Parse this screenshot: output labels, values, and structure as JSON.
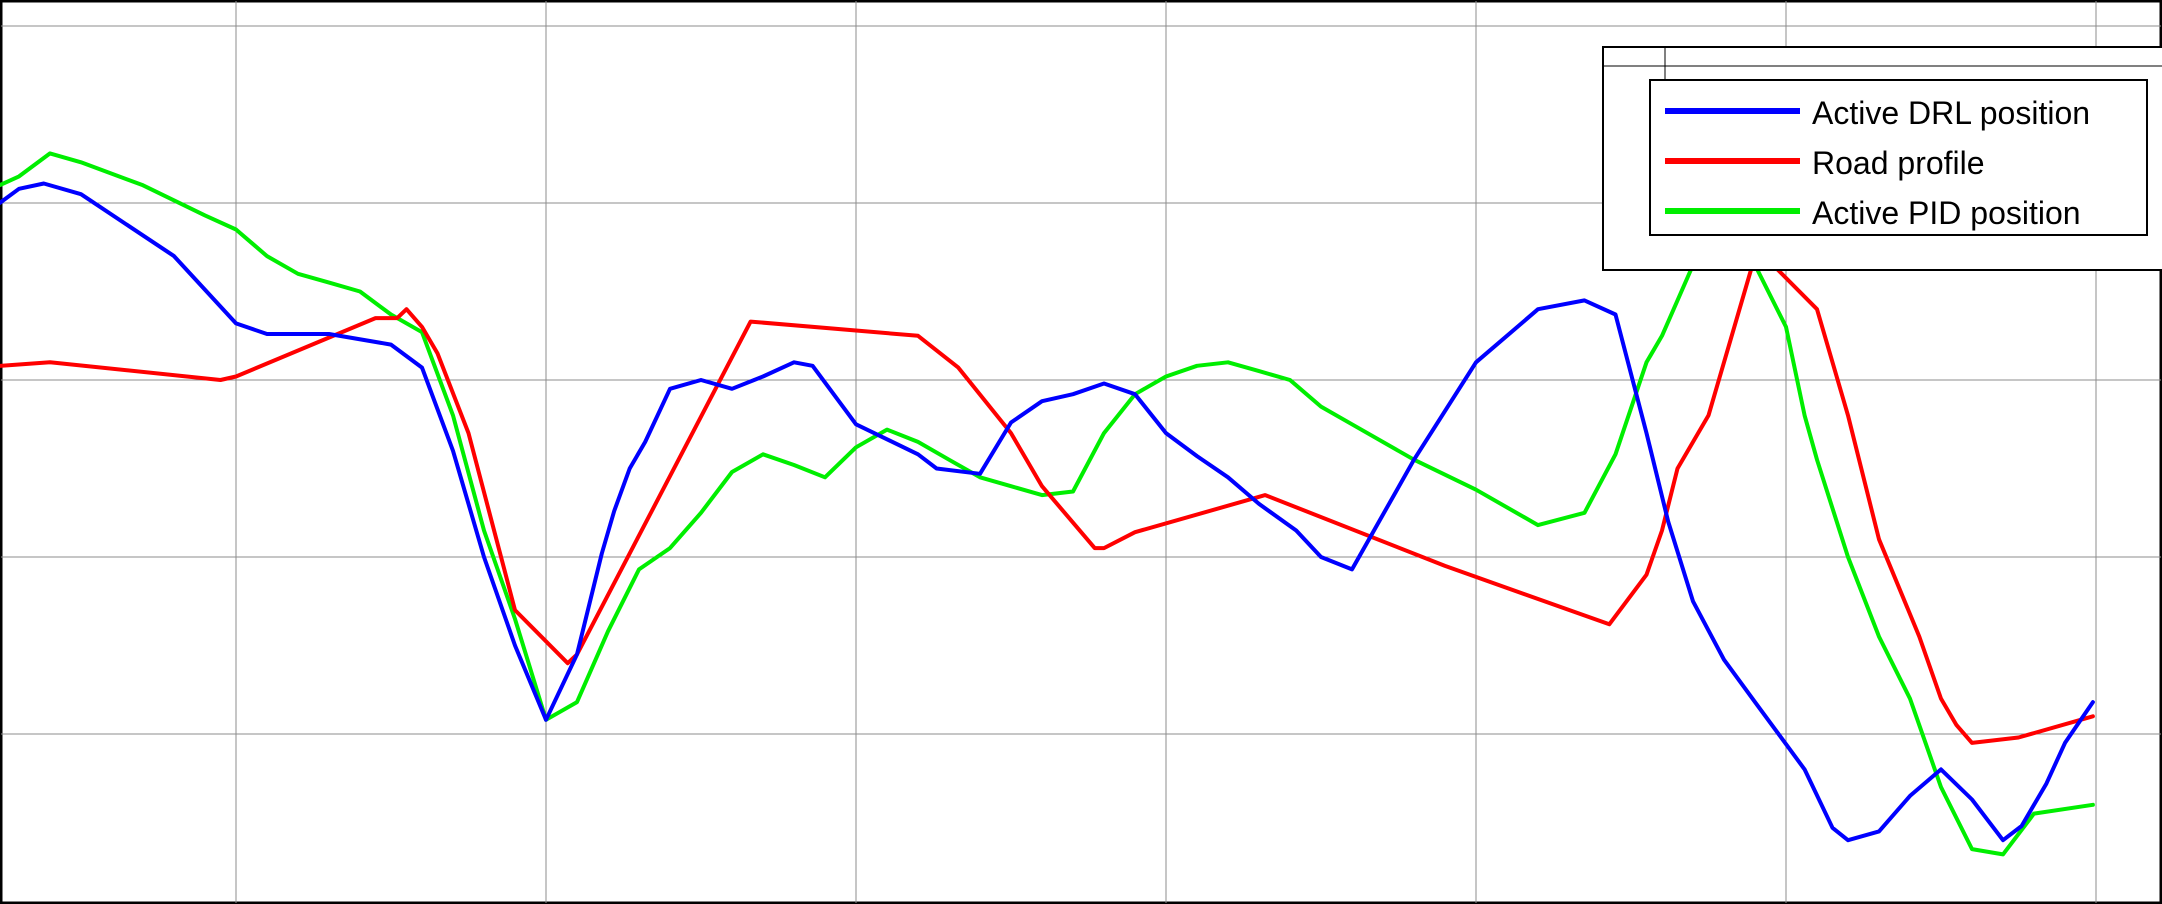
{
  "legend": {
    "entries": [
      {
        "label": "Active DRL position",
        "color": "#0000ff"
      },
      {
        "label": "Road profile",
        "color": "#ff0000"
      },
      {
        "label": "Active PID  position",
        "color": "#00ee00"
      }
    ]
  },
  "chart_data": {
    "type": "line",
    "title": "",
    "xlabel": "",
    "ylabel": "",
    "xlim": [
      0,
      7
    ],
    "ylim": [
      -5,
      0
    ],
    "grid": true,
    "legend_position": "top-right",
    "series": [
      {
        "name": "Active DRL position",
        "color": "#0000ff",
        "x": [
          0.0,
          0.1,
          0.16,
          0.3,
          0.38,
          0.5,
          0.8,
          1.0,
          1.1,
          1.3,
          1.5,
          1.6,
          1.7,
          1.8,
          1.9,
          2.0,
          2.1,
          2.18,
          2.22,
          2.27,
          2.32,
          2.4,
          2.5,
          2.6,
          2.7,
          2.8,
          2.86,
          3.0,
          3.2,
          3.26,
          3.4,
          3.5,
          3.6,
          3.7,
          3.8,
          3.9,
          4.0,
          4.1,
          4.2,
          4.3,
          4.42,
          4.5,
          4.6,
          4.8,
          5.0,
          5.2,
          5.35,
          5.45,
          5.55,
          5.62,
          5.7,
          5.8,
          5.9,
          6.06,
          6.15,
          6.2,
          6.3,
          6.4,
          6.5,
          6.6,
          6.7,
          6.76,
          6.84,
          6.9,
          6.99
        ],
        "values": [
          -0.92,
          -1.12,
          -1.1,
          -0.92,
          -0.89,
          -0.95,
          -1.3,
          -1.68,
          -1.74,
          -1.74,
          -1.8,
          -1.93,
          -2.4,
          -3.0,
          -3.5,
          -3.92,
          -3.55,
          -2.98,
          -2.74,
          -2.5,
          -2.35,
          -2.05,
          -2.0,
          -2.05,
          -1.98,
          -1.9,
          -1.92,
          -2.25,
          -2.42,
          -2.5,
          -2.53,
          -2.24,
          -2.12,
          -2.08,
          -2.02,
          -2.08,
          -2.3,
          -2.43,
          -2.55,
          -2.7,
          -2.85,
          -3.0,
          -3.07,
          -2.45,
          -1.9,
          -1.6,
          -1.55,
          -1.63,
          -2.3,
          -2.8,
          -3.25,
          -3.58,
          -3.82,
          -4.2,
          -4.53,
          -4.6,
          -4.55,
          -4.35,
          -4.2,
          -4.37,
          -4.6,
          -4.52,
          -4.28,
          -4.05,
          -3.82
        ],
        "values_precision_note": ""
      },
      {
        "name": "Road profile",
        "color": "#ff0000",
        "x": [
          0.0,
          0.4,
          0.95,
          1.0,
          1.45,
          1.52,
          1.55,
          1.6,
          1.65,
          1.75,
          1.9,
          2.07,
          2.1,
          2.66,
          3.2,
          3.33,
          3.5,
          3.6,
          3.77,
          3.8,
          3.9,
          4.32,
          4.9,
          5.43,
          5.55,
          5.6,
          5.65,
          5.75,
          5.9,
          5.93,
          6.1,
          6.2,
          6.3,
          6.43,
          6.5,
          6.55,
          6.6,
          6.75,
          6.99
        ],
        "values": [
          -1.95,
          -1.9,
          -2.0,
          -1.98,
          -1.65,
          -1.65,
          -1.6,
          -1.7,
          -1.85,
          -2.3,
          -3.3,
          -3.6,
          -3.55,
          -1.67,
          -1.75,
          -1.93,
          -2.3,
          -2.6,
          -2.95,
          -2.95,
          -2.86,
          -2.65,
          -3.05,
          -3.38,
          -3.1,
          -2.85,
          -2.5,
          -2.2,
          -1.3,
          -1.3,
          -1.6,
          -2.2,
          -2.9,
          -3.45,
          -3.8,
          -3.95,
          -4.05,
          -4.02,
          -3.9
        ]
      },
      {
        "name": "Active PID  position",
        "color": "#00ee00",
        "x": [
          0.0,
          0.1,
          0.2,
          0.3,
          0.4,
          0.5,
          0.7,
          0.9,
          1.0,
          1.1,
          1.2,
          1.3,
          1.4,
          1.5,
          1.6,
          1.7,
          1.8,
          1.9,
          2.0,
          2.1,
          2.2,
          2.3,
          2.4,
          2.5,
          2.6,
          2.7,
          2.8,
          2.9,
          3.0,
          3.1,
          3.2,
          3.3,
          3.4,
          3.5,
          3.6,
          3.7,
          3.8,
          3.9,
          4.0,
          4.1,
          4.2,
          4.3,
          4.4,
          4.5,
          4.6,
          4.8,
          5.0,
          5.2,
          5.35,
          5.45,
          5.55,
          5.6,
          5.7,
          5.8,
          5.9,
          6.0,
          6.06,
          6.1,
          6.2,
          6.3,
          6.4,
          6.5,
          6.6,
          6.7,
          6.8,
          6.99
        ],
        "values": [
          -0.92,
          -0.96,
          -0.93,
          -0.85,
          -0.72,
          -0.77,
          -0.9,
          -1.07,
          -1.15,
          -1.3,
          -1.4,
          -1.45,
          -1.5,
          -1.63,
          -1.73,
          -2.2,
          -2.85,
          -3.35,
          -3.92,
          -3.82,
          -3.42,
          -3.07,
          -2.95,
          -2.75,
          -2.52,
          -2.42,
          -2.48,
          -2.55,
          -2.38,
          -2.28,
          -2.35,
          -2.45,
          -2.55,
          -2.6,
          -2.65,
          -2.63,
          -2.3,
          -2.08,
          -1.98,
          -1.92,
          -1.9,
          -1.95,
          -2.0,
          -2.15,
          -2.25,
          -2.45,
          -2.62,
          -2.82,
          -2.75,
          -2.42,
          -1.9,
          -1.75,
          -1.35,
          -1.25,
          -1.35,
          -1.7,
          -2.2,
          -2.45,
          -3.0,
          -3.45,
          -3.8,
          -4.3,
          -4.65,
          -4.68,
          -4.45,
          -4.4
        ]
      }
    ]
  }
}
